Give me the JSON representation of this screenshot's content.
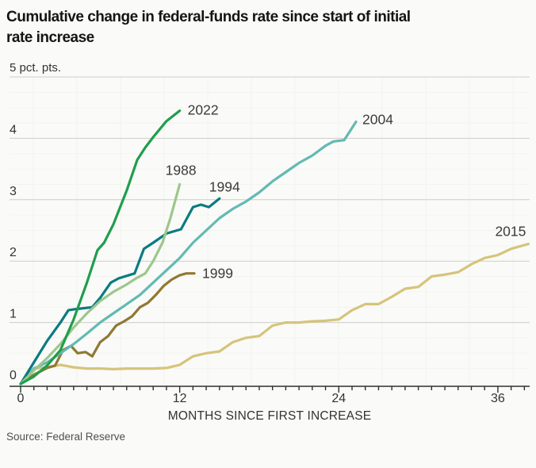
{
  "header": {
    "title_lines": [
      "Cumulative change in federal-funds rate since start of initial",
      "rate increase"
    ]
  },
  "chart_data": {
    "type": "line",
    "title": "Cumulative change in federal-funds rate since start of initial rate increase",
    "unit_label": "5 pct. pts.",
    "xlabel": "MONTHS SINCE FIRST INCREASE",
    "ylabel": "pct. pts.",
    "xlim": [
      0,
      38.4
    ],
    "ylim": [
      0,
      5
    ],
    "x_ticks_labeled": [
      0,
      12,
      24,
      36
    ],
    "x_minor_ticks_every_months": 1,
    "y_ticks": [
      0,
      1,
      2,
      3,
      4
    ],
    "grid": "horizontal gridlines at integers, very faint minor grid",
    "legend": "inline year labels at line ends",
    "axis_color": "#2f2f2f",
    "gridline_color": "#cdcdca",
    "series": [
      {
        "name": "2015",
        "color": "#d5c47b",
        "points": [
          [
            0,
            0
          ],
          [
            1,
            0.25
          ],
          [
            2,
            0.27
          ],
          [
            3,
            0.31
          ],
          [
            4,
            0.27
          ],
          [
            5,
            0.25
          ],
          [
            6,
            0.25
          ],
          [
            7,
            0.24
          ],
          [
            8,
            0.25
          ],
          [
            9,
            0.25
          ],
          [
            10,
            0.25
          ],
          [
            11,
            0.26
          ],
          [
            12,
            0.31
          ],
          [
            13,
            0.45
          ],
          [
            14,
            0.5
          ],
          [
            15,
            0.53
          ],
          [
            16,
            0.68
          ],
          [
            17,
            0.75
          ],
          [
            18,
            0.78
          ],
          [
            19,
            0.95
          ],
          [
            20,
            1.0
          ],
          [
            21,
            1.0
          ],
          [
            22,
            1.02
          ],
          [
            23,
            1.03
          ],
          [
            24,
            1.05
          ],
          [
            25,
            1.2
          ],
          [
            26,
            1.3
          ],
          [
            27,
            1.3
          ],
          [
            28,
            1.42
          ],
          [
            29,
            1.55
          ],
          [
            30,
            1.58
          ],
          [
            31,
            1.75
          ],
          [
            32,
            1.78
          ],
          [
            33,
            1.82
          ],
          [
            34,
            1.95
          ],
          [
            35,
            2.05
          ],
          [
            36,
            2.1
          ],
          [
            37,
            2.2
          ],
          [
            38.3,
            2.28
          ]
        ]
      },
      {
        "name": "1999",
        "color": "#8f7933",
        "points": [
          [
            0,
            0
          ],
          [
            1,
            0.15
          ],
          [
            2,
            0.26
          ],
          [
            2.6,
            0.3
          ],
          [
            3.2,
            0.55
          ],
          [
            3.8,
            0.62
          ],
          [
            4.3,
            0.5
          ],
          [
            4.9,
            0.52
          ],
          [
            5.4,
            0.45
          ],
          [
            6,
            0.68
          ],
          [
            6.6,
            0.78
          ],
          [
            7.2,
            0.95
          ],
          [
            7.8,
            1.02
          ],
          [
            8.4,
            1.1
          ],
          [
            9,
            1.25
          ],
          [
            9.6,
            1.32
          ],
          [
            10.2,
            1.45
          ],
          [
            10.8,
            1.6
          ],
          [
            11.4,
            1.7
          ],
          [
            12,
            1.77
          ],
          [
            12.5,
            1.8
          ],
          [
            13.1,
            1.8
          ]
        ]
      },
      {
        "name": "2004",
        "color": "#62bab3",
        "points": [
          [
            0,
            0
          ],
          [
            1,
            0.25
          ],
          [
            2,
            0.35
          ],
          [
            3,
            0.5
          ],
          [
            4,
            0.65
          ],
          [
            5,
            0.82
          ],
          [
            6,
            1.0
          ],
          [
            7,
            1.15
          ],
          [
            8,
            1.3
          ],
          [
            9,
            1.45
          ],
          [
            10,
            1.65
          ],
          [
            11,
            1.85
          ],
          [
            12,
            2.05
          ],
          [
            13,
            2.3
          ],
          [
            14,
            2.5
          ],
          [
            15,
            2.7
          ],
          [
            16,
            2.85
          ],
          [
            17,
            2.97
          ],
          [
            18,
            3.12
          ],
          [
            19,
            3.3
          ],
          [
            20,
            3.45
          ],
          [
            21,
            3.6
          ],
          [
            22,
            3.72
          ],
          [
            23,
            3.88
          ],
          [
            23.6,
            3.95
          ],
          [
            24.4,
            3.97
          ],
          [
            25.3,
            4.27
          ]
        ]
      },
      {
        "name": "1994",
        "color": "#097c81",
        "points": [
          [
            0,
            0
          ],
          [
            1,
            0.35
          ],
          [
            2,
            0.7
          ],
          [
            3,
            1.0
          ],
          [
            3.6,
            1.2
          ],
          [
            4.2,
            1.22
          ],
          [
            5.4,
            1.25
          ],
          [
            6,
            1.4
          ],
          [
            6.8,
            1.65
          ],
          [
            7.4,
            1.72
          ],
          [
            8.6,
            1.8
          ],
          [
            9.3,
            2.2
          ],
          [
            10,
            2.3
          ],
          [
            11,
            2.45
          ],
          [
            12.1,
            2.52
          ],
          [
            13,
            2.88
          ],
          [
            13.6,
            2.92
          ],
          [
            14.2,
            2.88
          ],
          [
            15,
            3.02
          ]
        ]
      },
      {
        "name": "1988",
        "color": "#9cc78c",
        "points": [
          [
            0,
            0
          ],
          [
            1,
            0.22
          ],
          [
            2,
            0.42
          ],
          [
            3,
            0.65
          ],
          [
            4,
            0.92
          ],
          [
            5,
            1.15
          ],
          [
            6,
            1.35
          ],
          [
            7,
            1.5
          ],
          [
            8,
            1.62
          ],
          [
            8.7,
            1.72
          ],
          [
            9.4,
            1.8
          ],
          [
            10,
            2.0
          ],
          [
            10.7,
            2.3
          ],
          [
            11.3,
            2.7
          ],
          [
            12,
            3.25
          ]
        ]
      },
      {
        "name": "2022",
        "color": "#1f9e4d",
        "points": [
          [
            0,
            0
          ],
          [
            1,
            0.12
          ],
          [
            2,
            0.3
          ],
          [
            3,
            0.55
          ],
          [
            3.5,
            0.8
          ],
          [
            4,
            1.05
          ],
          [
            5,
            1.65
          ],
          [
            5.8,
            2.18
          ],
          [
            6.3,
            2.3
          ],
          [
            7,
            2.6
          ],
          [
            8,
            3.15
          ],
          [
            8.8,
            3.65
          ],
          [
            9.4,
            3.85
          ],
          [
            10,
            4.02
          ],
          [
            11,
            4.28
          ],
          [
            12,
            4.45
          ]
        ]
      }
    ]
  },
  "footer": {
    "source": "Source: Federal Reserve"
  }
}
